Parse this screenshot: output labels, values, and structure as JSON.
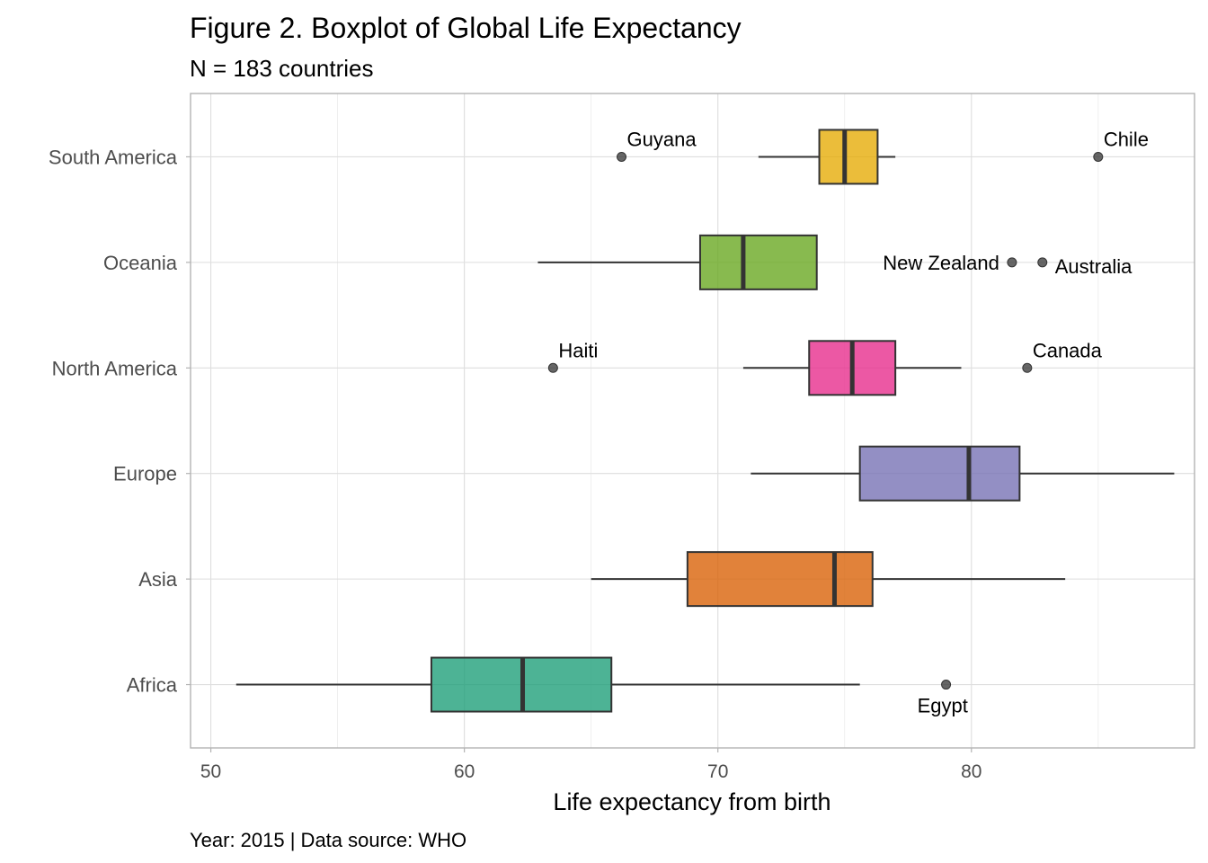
{
  "chart_data": {
    "type": "boxplot",
    "title": "Figure 2. Boxplot of Global Life Expectancy",
    "subtitle": "N = 183 countries",
    "caption": "Year: 2015 | Data source: WHO",
    "xlabel": "Life expectancy from birth",
    "ylabel": "",
    "xlim": [
      49.2,
      88.8
    ],
    "x_ticks": [
      50,
      60,
      70,
      80
    ],
    "x_tick_labels": [
      "50",
      "60",
      "70",
      "80"
    ],
    "grid": true,
    "categories": [
      "Africa",
      "Asia",
      "Europe",
      "North America",
      "Oceania",
      "South America"
    ],
    "series": [
      {
        "category": "Africa",
        "whisker_low": 51.0,
        "q1": 58.7,
        "median": 62.3,
        "q3": 65.8,
        "whisker_high": 75.6,
        "color": "#1b9e77"
      },
      {
        "category": "Asia",
        "whisker_low": 65.0,
        "q1": 68.8,
        "median": 74.6,
        "q3": 76.1,
        "whisker_high": 83.7,
        "color": "#d95f02"
      },
      {
        "category": "Europe",
        "whisker_low": 71.3,
        "q1": 75.6,
        "median": 79.9,
        "q3": 81.9,
        "whisker_high": 88.0,
        "color": "#7570b3"
      },
      {
        "category": "North America",
        "whisker_low": 71.0,
        "q1": 73.6,
        "median": 75.3,
        "q3": 77.0,
        "whisker_high": 79.6,
        "color": "#e7298a"
      },
      {
        "category": "Oceania",
        "whisker_low": 62.9,
        "q1": 69.3,
        "median": 71.0,
        "q3": 73.9,
        "whisker_high": 73.9,
        "color": "#66a61e"
      },
      {
        "category": "South America",
        "whisker_low": 71.6,
        "q1": 74.0,
        "median": 75.0,
        "q3": 76.3,
        "whisker_high": 77.0,
        "color": "#e6ab02"
      }
    ],
    "outliers": [
      {
        "category": "Africa",
        "value": 79.0,
        "label": "Egypt",
        "label_pos": "below-left"
      },
      {
        "category": "North America",
        "value": 63.5,
        "label": "Haiti",
        "label_pos": "above-right"
      },
      {
        "category": "North America",
        "value": 82.2,
        "label": "Canada",
        "label_pos": "above-right"
      },
      {
        "category": "Oceania",
        "value": 81.6,
        "label": "New Zealand",
        "label_pos": "left"
      },
      {
        "category": "Oceania",
        "value": 82.8,
        "label": "Australia",
        "label_pos": "below-right"
      },
      {
        "category": "South America",
        "value": 66.2,
        "label": "Guyana",
        "label_pos": "above-right"
      },
      {
        "category": "South America",
        "value": 85.0,
        "label": "Chile",
        "label_pos": "above-right"
      }
    ]
  }
}
